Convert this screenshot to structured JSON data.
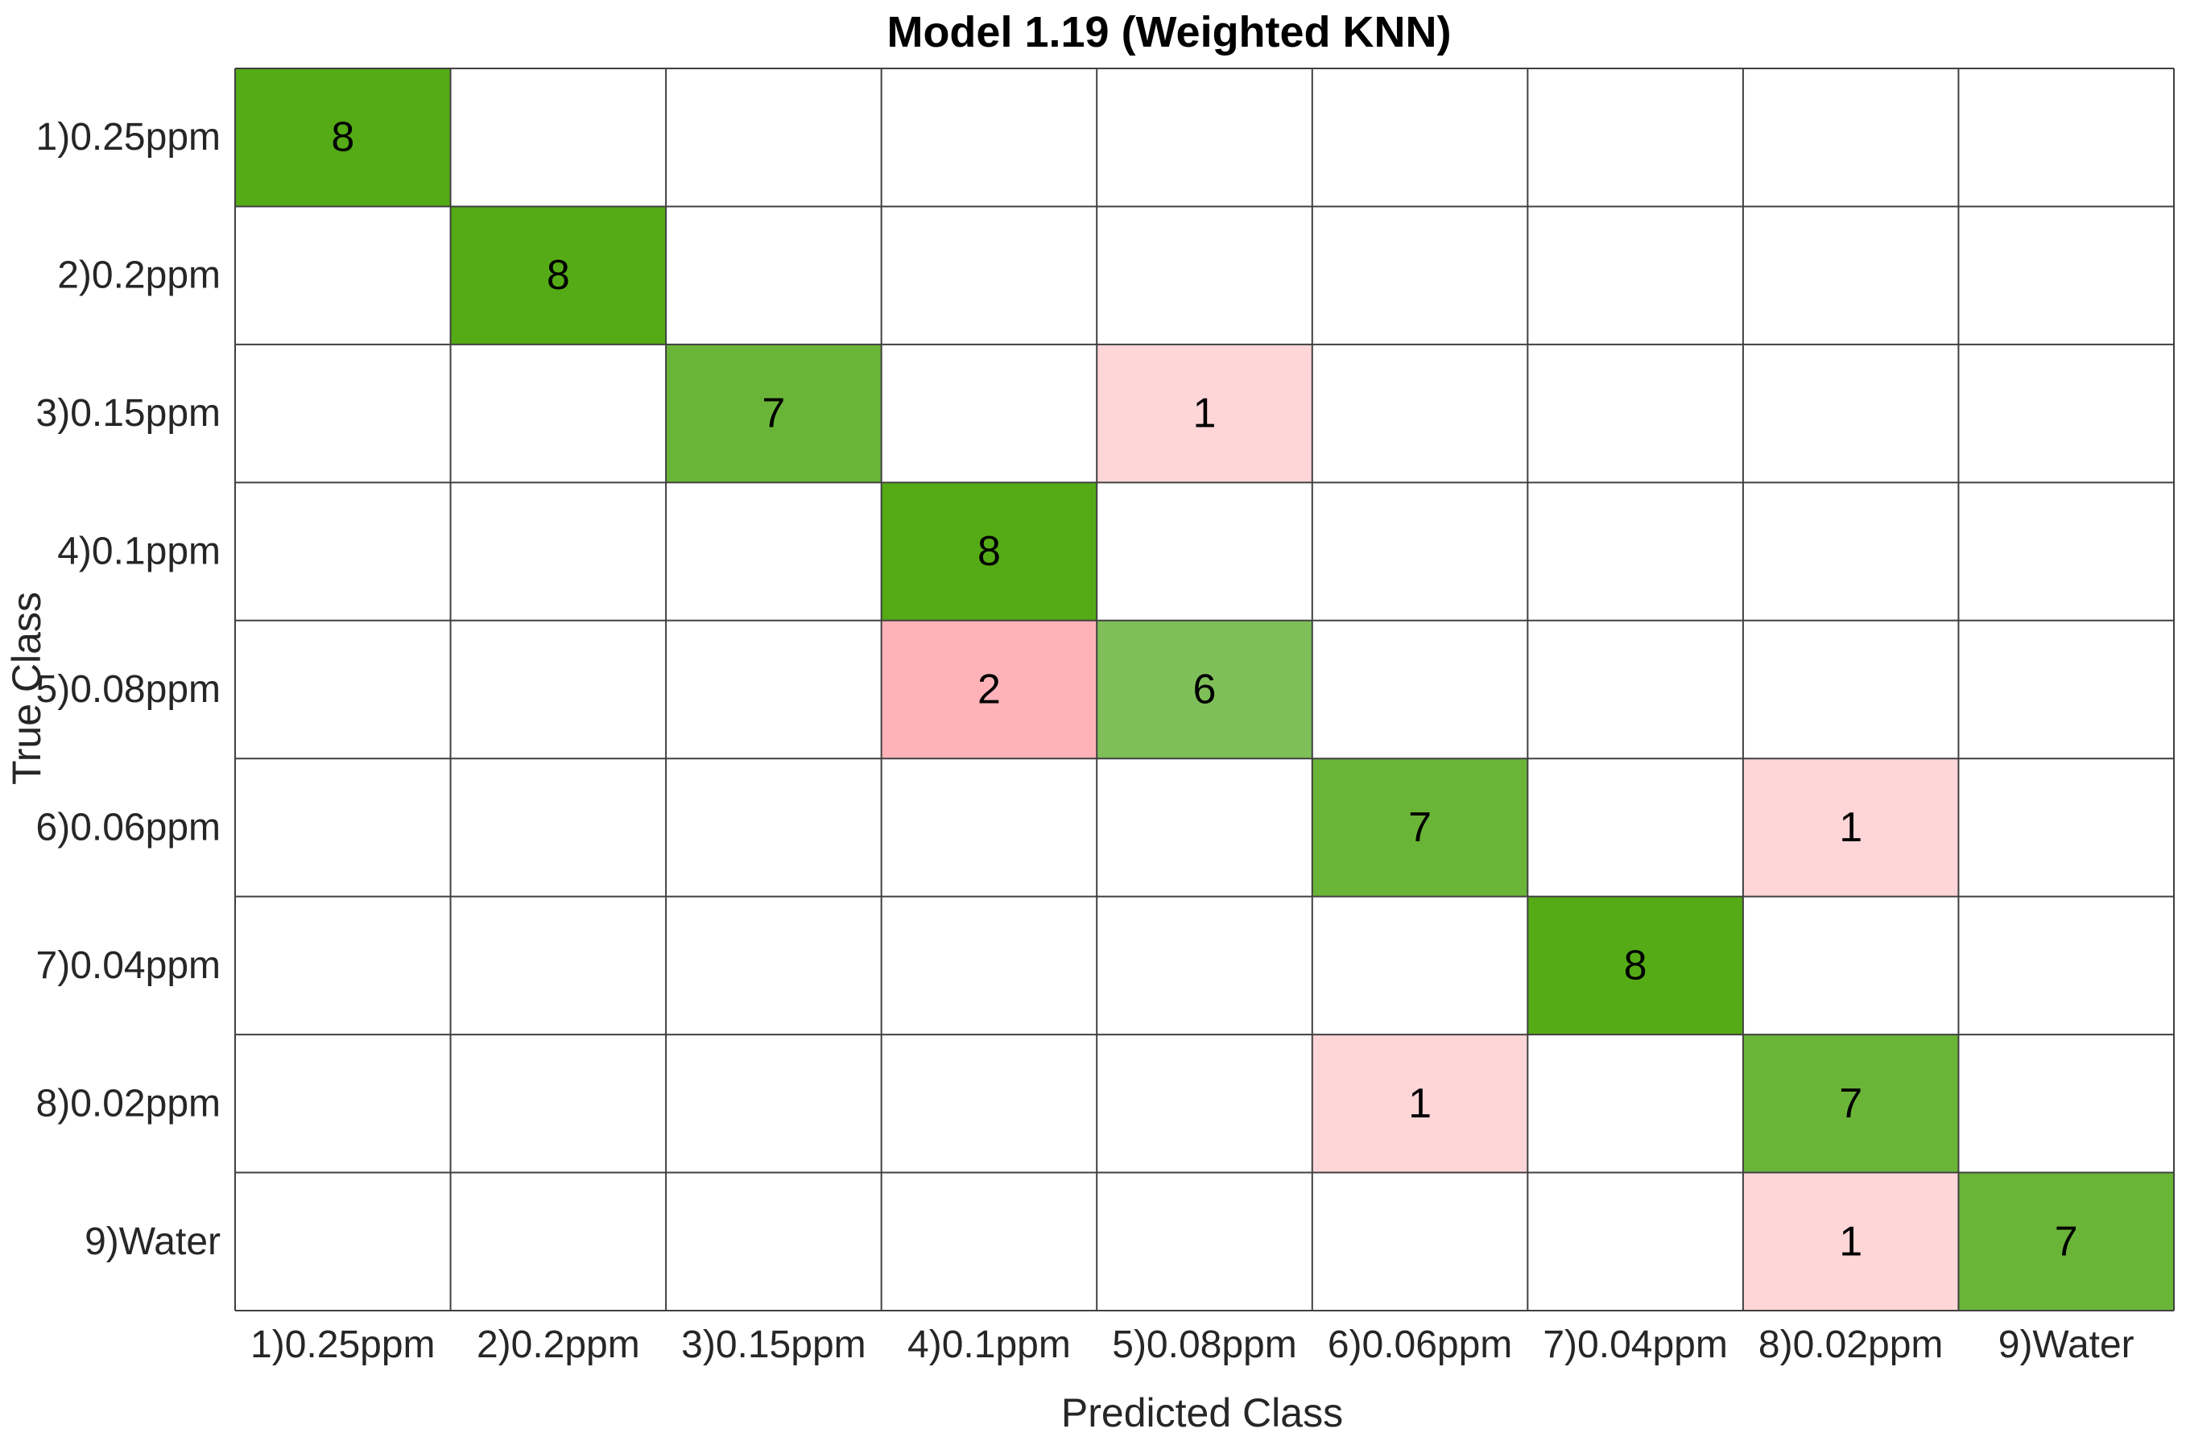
{
  "chart_data": {
    "type": "heatmap",
    "title": "Model 1.19 (Weighted KNN)",
    "xlabel": "Predicted Class",
    "ylabel": "True Class",
    "x_categories": [
      "1)0.25ppm",
      "2)0.2ppm",
      "3)0.15ppm",
      "4)0.1ppm",
      "5)0.08ppm",
      "6)0.06ppm",
      "7)0.04ppm",
      "8)0.02ppm",
      "9)Water"
    ],
    "y_categories": [
      "1)0.25ppm",
      "2)0.2ppm",
      "3)0.15ppm",
      "4)0.1ppm",
      "5)0.08ppm",
      "6)0.06ppm",
      "7)0.04ppm",
      "8)0.02ppm",
      "9)Water"
    ],
    "values": [
      [
        8,
        0,
        0,
        0,
        0,
        0,
        0,
        0,
        0
      ],
      [
        0,
        8,
        0,
        0,
        0,
        0,
        0,
        0,
        0
      ],
      [
        0,
        0,
        7,
        0,
        1,
        0,
        0,
        0,
        0
      ],
      [
        0,
        0,
        0,
        8,
        0,
        0,
        0,
        0,
        0
      ],
      [
        0,
        0,
        0,
        2,
        6,
        0,
        0,
        0,
        0
      ],
      [
        0,
        0,
        0,
        0,
        0,
        7,
        0,
        1,
        0
      ],
      [
        0,
        0,
        0,
        0,
        0,
        0,
        8,
        0,
        0
      ],
      [
        0,
        0,
        0,
        0,
        0,
        1,
        0,
        7,
        0
      ],
      [
        0,
        0,
        0,
        0,
        0,
        0,
        0,
        1,
        7
      ]
    ],
    "colors": {
      "correct_max": "#55ab16",
      "correct_min": "#7fbf59",
      "incorrect_max": "#ffb3b8",
      "incorrect_min": "#ffd6d8",
      "empty": "#ffffff",
      "grid": "#404040"
    }
  }
}
